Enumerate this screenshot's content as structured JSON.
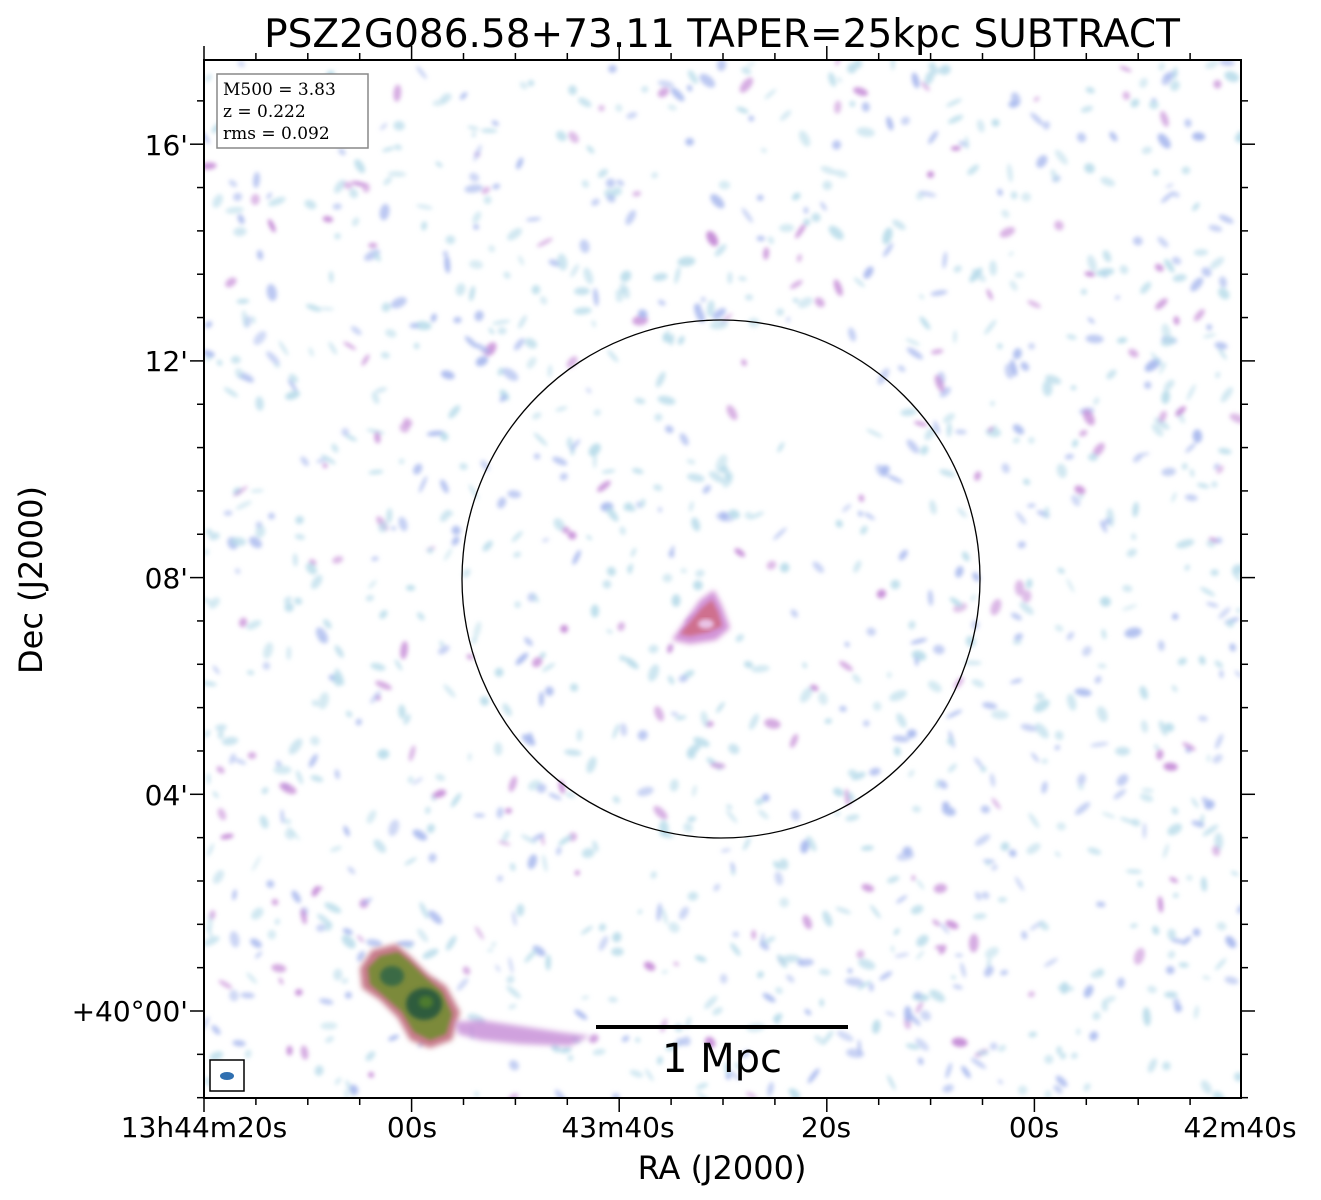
{
  "title": "PSZ2G086.58+73.11 TAPER=25kpc SUBTRACT",
  "info_box": {
    "mass": "M500 = 3.83",
    "redshift": "z = 0.222",
    "rms": "rms = 0.092"
  },
  "axes": {
    "xlabel": "RA (J2000)",
    "ylabel": "Dec (J2000)",
    "x_ticks": [
      "13h44m20s",
      "00s",
      "43m40s",
      "20s",
      "00s",
      "42m40s"
    ],
    "y_ticks": [
      "+40°00'",
      "04'",
      "08'",
      "12'",
      "16'"
    ]
  },
  "scale_bar": {
    "label": "1 Mpc"
  },
  "colors": {
    "noise_light": "#b9dcea",
    "noise_mid": "#a9b9ee",
    "noise_strong": "#c58ad6",
    "source_edge": "#c77a8a",
    "source_mid": "#7c8a3a",
    "source_core": "#2f5c3e",
    "beam": "#2f6fb0",
    "circle": "#000000"
  }
}
